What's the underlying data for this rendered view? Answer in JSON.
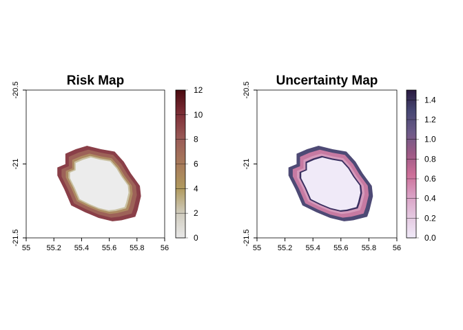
{
  "chart_data": [
    {
      "type": "heatmap",
      "title": "Risk Map",
      "xlim": [
        55,
        56
      ],
      "ylim": [
        -21.5,
        -20.5
      ],
      "xticks": [
        "55",
        "55.2",
        "55.4",
        "55.6",
        "55.8",
        "56"
      ],
      "yticks": [
        "-20.5",
        "-21",
        "-21.5"
      ],
      "legend": {
        "position": "right",
        "range": [
          0,
          12
        ],
        "ticks": [
          "0",
          "2",
          "4",
          "6",
          "8",
          "10",
          "12"
        ],
        "colors": [
          "#e8e8e8",
          "#cfcbbd",
          "#b09a5e",
          "#a77a5a",
          "#9a5c58",
          "#7f3038",
          "#4a0a10"
        ]
      },
      "layers": [
        "#8a3f48",
        "#9d6258",
        "#ad8a62",
        "#c9c0a0",
        "#ececec"
      ]
    },
    {
      "type": "heatmap",
      "title": "Uncertainty Map",
      "xlim": [
        55,
        56
      ],
      "ylim": [
        -21.5,
        -20.5
      ],
      "xticks": [
        "55",
        "55.2",
        "55.4",
        "55.6",
        "55.8",
        "56"
      ],
      "yticks": [
        "-20.5",
        "-21",
        "-21.5"
      ],
      "legend": {
        "position": "right",
        "range": [
          0,
          1.5
        ],
        "ticks": [
          "0.0",
          "0.2",
          "0.4",
          "0.6",
          "0.8",
          "1.0",
          "1.2",
          "1.4"
        ],
        "colors": [
          "#f0eaf8",
          "#e4c8e0",
          "#d9a0c4",
          "#cc6f98",
          "#9c5a86",
          "#6c5a88",
          "#474773",
          "#2a1a40"
        ]
      },
      "layers": [
        "#4e4a75",
        "#c77aa2",
        "#d59abb",
        "#3a3060",
        "#f0eaf8"
      ]
    }
  ],
  "island_outline": [
    [
      55.283,
      -20.931
    ],
    [
      55.358,
      -20.9
    ],
    [
      55.44,
      -20.877
    ],
    [
      55.54,
      -20.9
    ],
    [
      55.639,
      -20.916
    ],
    [
      55.705,
      -20.985
    ],
    [
      55.755,
      -21.063
    ],
    [
      55.821,
      -21.148
    ],
    [
      55.829,
      -21.218
    ],
    [
      55.805,
      -21.311
    ],
    [
      55.788,
      -21.357
    ],
    [
      55.689,
      -21.381
    ],
    [
      55.623,
      -21.388
    ],
    [
      55.523,
      -21.365
    ],
    [
      55.424,
      -21.326
    ],
    [
      55.325,
      -21.28
    ],
    [
      55.275,
      -21.171
    ],
    [
      55.225,
      -21.078
    ],
    [
      55.225,
      -21.024
    ],
    [
      55.283,
      -21.001
    ]
  ]
}
